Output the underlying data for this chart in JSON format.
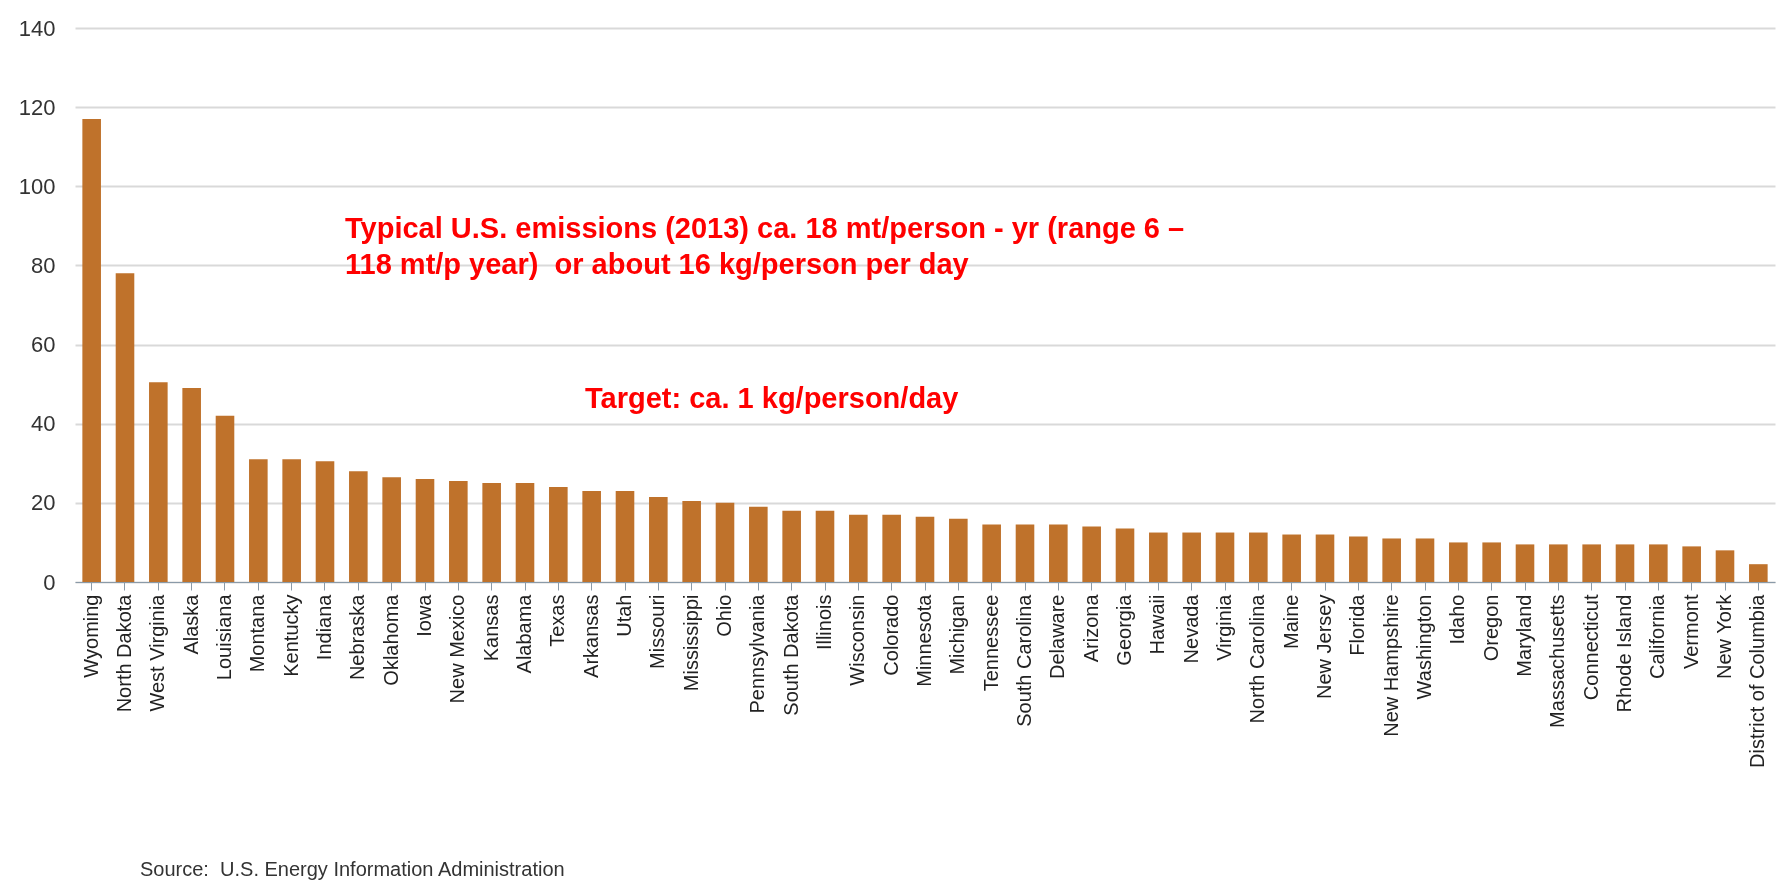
{
  "chart_data": {
    "type": "bar",
    "categories": [
      "Wyoming",
      "North Dakota",
      "West Virginia",
      "Alaska",
      "Louisiana",
      "Montana",
      "Kentucky",
      "Indiana",
      "Nebraska",
      "Oklahoma",
      "Iowa",
      "New Mexico",
      "Kansas",
      "Alabama",
      "Texas",
      "Arkansas",
      "Utah",
      "Missouri",
      "Mississippi",
      "Ohio",
      "Pennsylvania",
      "South Dakota",
      "Illinois",
      "Wisconsin",
      "Colorado",
      "Minnesota",
      "Michigan",
      "Tennessee",
      "South Carolina",
      "Delaware",
      "Arizona",
      "Georgia",
      "Hawaii",
      "Nevada",
      "Virginia",
      "North Carolina",
      "Maine",
      "New Jersey",
      "Florida",
      "New Hampshire",
      "Washington",
      "Idaho",
      "Oregon",
      "Maryland",
      "Massachusetts",
      "Connecticut",
      "Rhode Island",
      "California",
      "Vermont",
      "New York",
      "District of Columbia"
    ],
    "values": [
      117,
      78,
      50.5,
      49,
      42,
      31,
      31,
      30.5,
      28,
      26.5,
      26,
      25.5,
      25,
      25,
      24,
      23,
      23,
      21.5,
      20.5,
      20,
      19,
      18,
      18,
      17,
      17,
      16.5,
      16,
      14.5,
      14.5,
      14.5,
      14,
      13.5,
      12.5,
      12.5,
      12.5,
      12.5,
      12,
      12,
      11.5,
      11,
      11,
      10,
      10,
      9.5,
      9.5,
      9.5,
      9.5,
      9.5,
      9,
      8,
      4.5
    ],
    "color": "#bf722b",
    "ylim": [
      0,
      140
    ],
    "yticks": [
      0,
      20,
      40,
      60,
      80,
      100,
      120,
      140
    ],
    "grid": "y",
    "annotations": [
      "Typical U.S. emissions (2013) ca. 18 mt/person - yr (range 6 –\n118 mt/p year)  or about 16 kg/person per day",
      "Target: ca. 1 kg/person/day",
      "Source:  U.S. Energy Information Administration"
    ]
  }
}
